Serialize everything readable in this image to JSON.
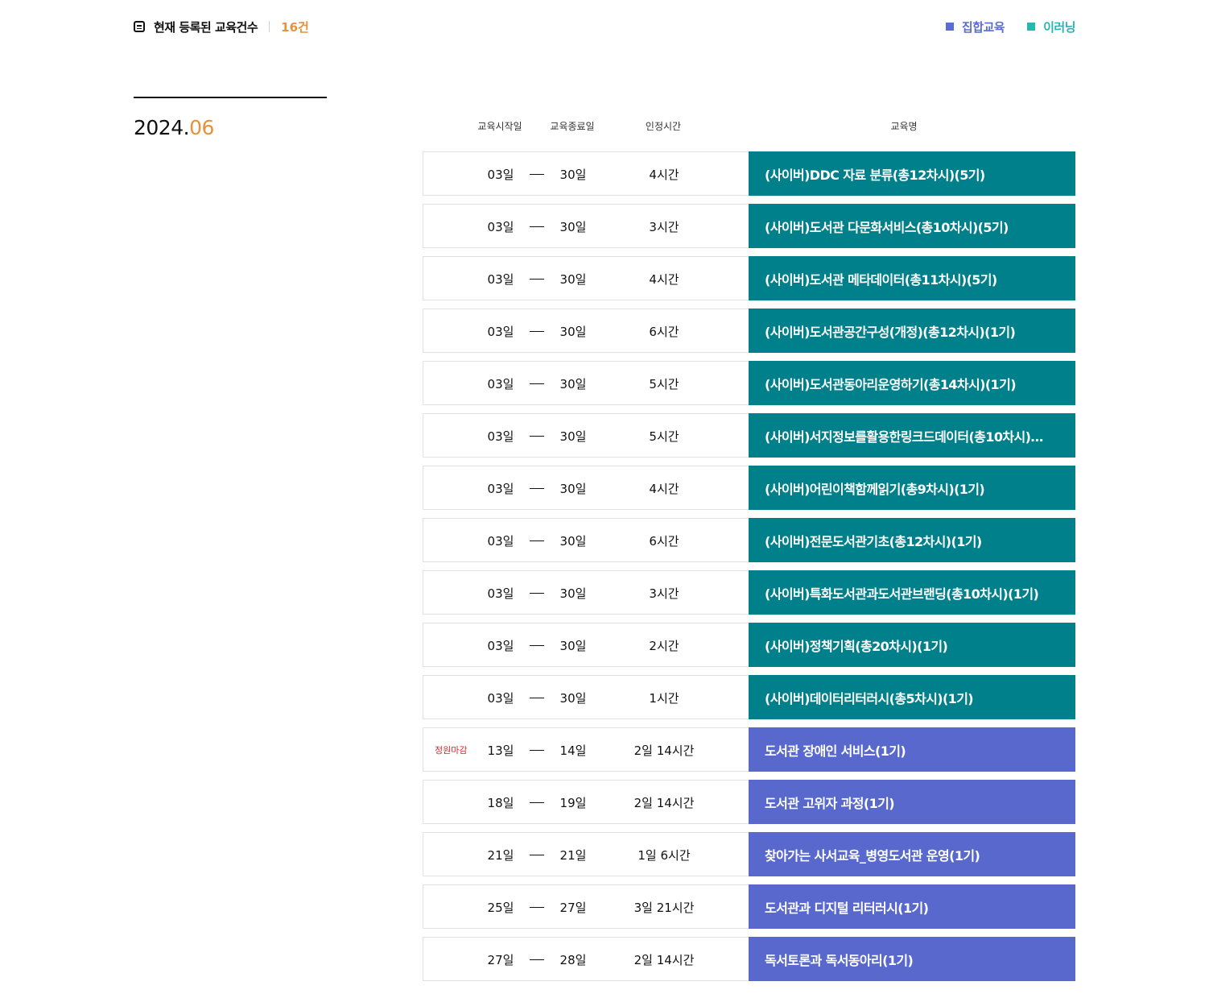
{
  "summary": {
    "label": "현재 등록된 교육건수",
    "count": "16건"
  },
  "legend": [
    {
      "label": "집합교육",
      "color": "#5b6dcf"
    },
    {
      "label": "이러닝",
      "color": "#2ab5b0"
    }
  ],
  "colors": {
    "offline": "#5868cc",
    "elearning": "#00808b",
    "accent": "#e8913a",
    "closed": "#d6262b"
  },
  "month": {
    "year": "2024.",
    "month": "06"
  },
  "columns": {
    "start": "교육시작일",
    "end": "교육종료일",
    "hours": "인정시간",
    "title": "교육명"
  },
  "courses": [
    {
      "badge": "",
      "start": "03일",
      "end": "30일",
      "hours": "4시간",
      "title": "(사이버)DDC 자료 분류(총12차시)(5기)",
      "type": "elearning"
    },
    {
      "badge": "",
      "start": "03일",
      "end": "30일",
      "hours": "3시간",
      "title": "(사이버)도서관 다문화서비스(총10차시)(5기)",
      "type": "elearning"
    },
    {
      "badge": "",
      "start": "03일",
      "end": "30일",
      "hours": "4시간",
      "title": "(사이버)도서관 메타데이터(총11차시)(5기)",
      "type": "elearning"
    },
    {
      "badge": "",
      "start": "03일",
      "end": "30일",
      "hours": "6시간",
      "title": "(사이버)도서관공간구성(개정)(총12차시)(1기)",
      "type": "elearning"
    },
    {
      "badge": "",
      "start": "03일",
      "end": "30일",
      "hours": "5시간",
      "title": "(사이버)도서관동아리운영하기(총14차시)(1기)",
      "type": "elearning"
    },
    {
      "badge": "",
      "start": "03일",
      "end": "30일",
      "hours": "5시간",
      "title": "(사이버)서지정보를활용한링크드데이터(총10차시)…",
      "type": "elearning"
    },
    {
      "badge": "",
      "start": "03일",
      "end": "30일",
      "hours": "4시간",
      "title": "(사이버)어린이책함께읽기(총9차시)(1기)",
      "type": "elearning"
    },
    {
      "badge": "",
      "start": "03일",
      "end": "30일",
      "hours": "6시간",
      "title": "(사이버)전문도서관기초(총12차시)(1기)",
      "type": "elearning"
    },
    {
      "badge": "",
      "start": "03일",
      "end": "30일",
      "hours": "3시간",
      "title": "(사이버)특화도서관과도서관브랜딩(총10차시)(1기)",
      "type": "elearning"
    },
    {
      "badge": "",
      "start": "03일",
      "end": "30일",
      "hours": "2시간",
      "title": "(사이버)정책기획(총20차시)(1기)",
      "type": "elearning"
    },
    {
      "badge": "",
      "start": "03일",
      "end": "30일",
      "hours": "1시간",
      "title": "(사이버)데이터리터러시(총5차시)(1기)",
      "type": "elearning"
    },
    {
      "badge": "정원마감",
      "start": "13일",
      "end": "14일",
      "hours": "2일 14시간",
      "title": "도서관 장애인 서비스(1기)",
      "type": "offline"
    },
    {
      "badge": "",
      "start": "18일",
      "end": "19일",
      "hours": "2일 14시간",
      "title": "도서관 고위자 과정(1기)",
      "type": "offline"
    },
    {
      "badge": "",
      "start": "21일",
      "end": "21일",
      "hours": "1일 6시간",
      "title": "찾아가는 사서교육_병영도서관 운영(1기)",
      "type": "offline"
    },
    {
      "badge": "",
      "start": "25일",
      "end": "27일",
      "hours": "3일 21시간",
      "title": "도서관과 디지털 리터러시(1기)",
      "type": "offline"
    },
    {
      "badge": "",
      "start": "27일",
      "end": "28일",
      "hours": "2일 14시간",
      "title": "독서토론과 독서동아리(1기)",
      "type": "offline"
    }
  ]
}
